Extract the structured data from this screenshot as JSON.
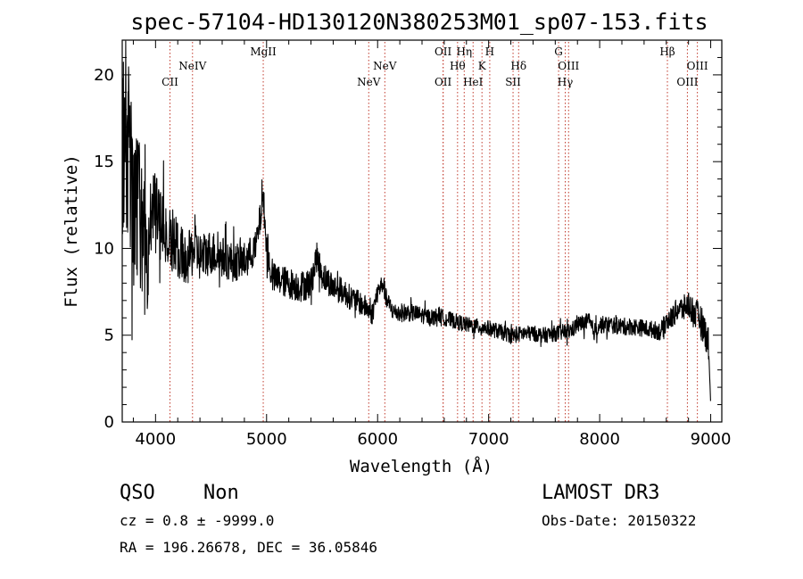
{
  "chart_data": {
    "type": "line",
    "title": "spec-57104-HD130120N380253M01_sp07-153.fits",
    "xlabel": "Wavelength (Å)",
    "ylabel": "Flux (relative)",
    "xlim": [
      3700,
      9100
    ],
    "ylim": [
      0,
      22
    ],
    "x_ticks": [
      4000,
      5000,
      6000,
      7000,
      8000,
      9000
    ],
    "x_tick_labels": [
      "4000",
      "5000",
      "6000",
      "7000",
      "8000",
      "9000"
    ],
    "y_ticks": [
      0,
      5,
      10,
      15,
      20
    ],
    "y_tick_labels": [
      "0",
      "5",
      "10",
      "15",
      "20"
    ],
    "line_color": "#000000",
    "marker_color": "#c0392b",
    "spectrum_anchors": {
      "x": [
        3700,
        3720,
        3740,
        3760,
        3780,
        3800,
        3820,
        3850,
        3880,
        3900,
        3920,
        3950,
        4000,
        4050,
        4100,
        4150,
        4200,
        4250,
        4300,
        4350,
        4400,
        4500,
        4600,
        4700,
        4800,
        4900,
        4950,
        4970,
        5000,
        5050,
        5100,
        5200,
        5300,
        5400,
        5450,
        5500,
        5600,
        5700,
        5750,
        5800,
        5900,
        5950,
        6000,
        6050,
        6080,
        6150,
        6300,
        6500,
        6550,
        6600,
        6700,
        6800,
        6900,
        7000,
        7100,
        7200,
        7250,
        7300,
        7400,
        7500,
        7600,
        7700,
        7750,
        7800,
        7900,
        7950,
        8000,
        8100,
        8200,
        8300,
        8400,
        8500,
        8550,
        8600,
        8650,
        8700,
        8750,
        8800,
        8850,
        8900,
        8950,
        8980,
        9000
      ],
      "y": [
        14,
        17,
        15,
        16,
        14,
        13,
        12,
        12,
        11,
        10,
        9.5,
        11,
        12,
        11,
        11,
        10.5,
        10,
        9.5,
        9.5,
        10,
        9.5,
        9.8,
        9.5,
        9.2,
        9.3,
        10,
        12,
        13,
        10,
        8.3,
        8.2,
        8.0,
        7.8,
        8.0,
        9.5,
        8.5,
        7.8,
        7.5,
        7.2,
        7.0,
        6.6,
        6.2,
        7.5,
        8.0,
        7.0,
        6.3,
        6.3,
        6.0,
        6.2,
        6.0,
        5.8,
        5.6,
        5.5,
        5.4,
        5.2,
        5.0,
        5.0,
        5.1,
        5.1,
        5.0,
        5.1,
        5.2,
        5.3,
        5.6,
        5.8,
        5.2,
        5.6,
        5.6,
        5.5,
        5.5,
        5.4,
        5.3,
        5.2,
        5.8,
        6.0,
        6.5,
        6.5,
        6.8,
        6.3,
        6.0,
        5.2,
        4.5,
        1.0
      ]
    },
    "noise_amplitude": {
      "x": [
        3700,
        3800,
        3900,
        4000,
        4100,
        4200,
        4400,
        4600,
        5000,
        5400,
        5800,
        6000,
        6500,
        7000,
        7500,
        8000,
        8500,
        8800,
        9000
      ],
      "amp": [
        6.0,
        5.0,
        4.0,
        2.5,
        2.0,
        1.6,
        1.4,
        1.2,
        0.9,
        0.9,
        0.7,
        0.6,
        0.45,
        0.45,
        0.45,
        0.5,
        0.5,
        0.8,
        1.0
      ]
    },
    "emission_lines": [
      {
        "label": "CII",
        "wavelength": 4130,
        "label_row": 1
      },
      {
        "label": "NeIV",
        "wavelength": 4333,
        "label_row": 0
      },
      {
        "label": "MgII",
        "wavelength": 4970,
        "label_row": -1
      },
      {
        "label": "NeV",
        "wavelength": 5920,
        "label_row": 1
      },
      {
        "label": "NeV",
        "wavelength": 6065,
        "label_row": 0
      },
      {
        "label": "OII",
        "wavelength": 6590,
        "label_row": -1
      },
      {
        "label": "OII",
        "wavelength": 6590,
        "label_row": 1
      },
      {
        "label": "Hθ",
        "wavelength": 6720,
        "label_row": 0
      },
      {
        "label": "Hη",
        "wavelength": 6780,
        "label_row": -1
      },
      {
        "label": "HeI",
        "wavelength": 6860,
        "label_row": 1
      },
      {
        "label": "K",
        "wavelength": 6940,
        "label_row": 0
      },
      {
        "label": "H",
        "wavelength": 7010,
        "label_row": -1
      },
      {
        "label": "SII",
        "wavelength": 7220,
        "label_row": 1
      },
      {
        "label": "Hδ",
        "wavelength": 7270,
        "label_row": 0
      },
      {
        "label": "G",
        "wavelength": 7630,
        "label_row": -1
      },
      {
        "label": "Hγ",
        "wavelength": 7690,
        "label_row": 1
      },
      {
        "label": "OIII",
        "wavelength": 7720,
        "label_row": 0
      },
      {
        "label": "Hβ",
        "wavelength": 8610,
        "label_row": -1
      },
      {
        "label": "OIII",
        "wavelength": 8790,
        "label_row": 1
      },
      {
        "label": "OIII",
        "wavelength": 8880,
        "label_row": 0
      }
    ]
  },
  "info": {
    "class": "QSO",
    "subclass": "Non",
    "survey": "LAMOST DR3",
    "cz": "cz = 0.8 ± -9999.0",
    "obs_date": "Obs-Date: 20150322",
    "coords": "RA = 196.26678, DEC =  36.05846"
  }
}
